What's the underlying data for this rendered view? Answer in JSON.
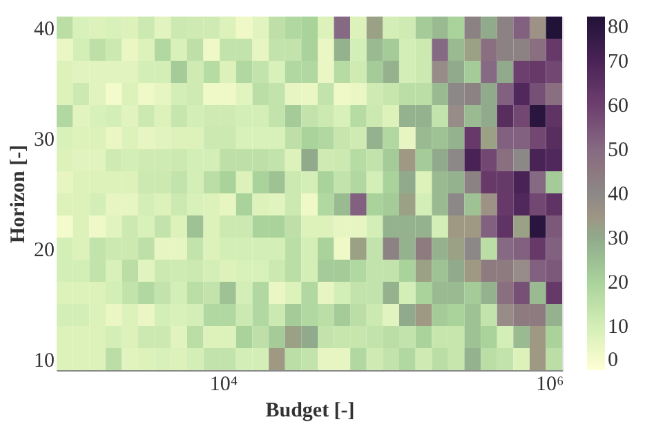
{
  "chart_data": {
    "type": "heatmap",
    "xlabel": "Budget [-]",
    "ylabel": "Horizon [-]",
    "log": "x",
    "xlim": [
      955,
      1200000
    ],
    "xticks": [
      {
        "value": 10000,
        "label": "10⁴"
      },
      {
        "value": 1000000,
        "label": "10⁶"
      }
    ],
    "ylim": [
      9,
      41
    ],
    "yticks": [
      10,
      20,
      30,
      40
    ],
    "clim": [
      0,
      80
    ],
    "cticks": [
      0,
      10,
      20,
      30,
      40,
      50,
      60,
      70,
      80
    ],
    "x": [
      1070,
      1350,
      1700,
      2140,
      2690,
      3390,
      4270,
      5370,
      6760,
      8510,
      10700,
      13500,
      17000,
      21400,
      26900,
      33900,
      42700,
      53700,
      67600,
      85100,
      107000,
      135000,
      170000,
      214000,
      269000,
      339000,
      427000,
      537000,
      676000,
      851000,
      1070000
    ],
    "y": [
      40,
      38,
      36,
      34,
      32,
      30,
      28,
      26,
      24,
      22,
      20,
      18,
      16,
      14,
      12,
      10
    ],
    "cells": [
      [
        16,
        9,
        8,
        9,
        8,
        12,
        7,
        12,
        11,
        11,
        8,
        4,
        7,
        15,
        18,
        20,
        8,
        50,
        8,
        32,
        10,
        11,
        22,
        26,
        20,
        42,
        30,
        42,
        52,
        36,
        80
      ],
      [
        5,
        10,
        15,
        12,
        5,
        8,
        18,
        9,
        15,
        4,
        14,
        14,
        6,
        14,
        14,
        20,
        5,
        28,
        10,
        26,
        22,
        10,
        12,
        50,
        26,
        32,
        48,
        42,
        42,
        48,
        62
      ],
      [
        8,
        7,
        7,
        7,
        7,
        10,
        10,
        22,
        11,
        17,
        8,
        18,
        14,
        9,
        18,
        18,
        5,
        17,
        11,
        22,
        28,
        10,
        12,
        38,
        30,
        22,
        50,
        30,
        60,
        62,
        58
      ],
      [
        8,
        12,
        7,
        3,
        8,
        4,
        6,
        10,
        11,
        4,
        4,
        7,
        16,
        14,
        6,
        5,
        14,
        4,
        5,
        11,
        13,
        16,
        16,
        26,
        40,
        42,
        30,
        52,
        68,
        56,
        48
      ],
      [
        18,
        7,
        9,
        10,
        7,
        12,
        8,
        13,
        10,
        11,
        11,
        10,
        10,
        14,
        22,
        14,
        12,
        9,
        17,
        12,
        8,
        28,
        28,
        14,
        38,
        26,
        30,
        66,
        58,
        78,
        64
      ],
      [
        9,
        8,
        8,
        5,
        8,
        6,
        7,
        8,
        8,
        12,
        12,
        9,
        9,
        9,
        15,
        20,
        18,
        13,
        11,
        28,
        18,
        6,
        26,
        24,
        28,
        62,
        32,
        52,
        52,
        58,
        66
      ],
      [
        8,
        7,
        7,
        11,
        10,
        11,
        11,
        12,
        10,
        10,
        15,
        15,
        15,
        14,
        8,
        30,
        11,
        12,
        17,
        14,
        22,
        34,
        22,
        30,
        40,
        70,
        58,
        48,
        40,
        70,
        68
      ],
      [
        6,
        8,
        8,
        8,
        8,
        12,
        12,
        14,
        10,
        16,
        20,
        8,
        20,
        24,
        12,
        10,
        20,
        14,
        18,
        10,
        20,
        30,
        8,
        26,
        28,
        42,
        62,
        62,
        70,
        50,
        22
      ],
      [
        8,
        8,
        10,
        6,
        6,
        10,
        8,
        12,
        9,
        8,
        6,
        20,
        8,
        7,
        12,
        4,
        18,
        26,
        52,
        20,
        22,
        32,
        10,
        26,
        40,
        24,
        36,
        62,
        68,
        58,
        64
      ],
      [
        3,
        8,
        4,
        7,
        12,
        9,
        14,
        8,
        24,
        8,
        12,
        12,
        20,
        20,
        15,
        8,
        8,
        6,
        6,
        10,
        28,
        28,
        28,
        10,
        34,
        34,
        52,
        64,
        32,
        78,
        54
      ],
      [
        10,
        8,
        14,
        12,
        12,
        15,
        6,
        6,
        14,
        8,
        10,
        10,
        10,
        10,
        16,
        10,
        20,
        4,
        32,
        14,
        42,
        28,
        44,
        28,
        32,
        40,
        16,
        50,
        52,
        62,
        52
      ],
      [
        10,
        10,
        14,
        9,
        16,
        7,
        12,
        11,
        12,
        10,
        8,
        9,
        9,
        12,
        16,
        10,
        22,
        22,
        18,
        14,
        14,
        20,
        32,
        24,
        30,
        34,
        44,
        44,
        38,
        52,
        54
      ],
      [
        8,
        8,
        8,
        10,
        14,
        18,
        14,
        10,
        16,
        14,
        24,
        10,
        18,
        5,
        8,
        18,
        6,
        10,
        14,
        14,
        28,
        10,
        20,
        26,
        26,
        22,
        28,
        48,
        56,
        26,
        62
      ],
      [
        10,
        10,
        8,
        5,
        8,
        5,
        10,
        9,
        10,
        18,
        18,
        12,
        18,
        12,
        22,
        18,
        16,
        22,
        16,
        12,
        7,
        30,
        34,
        22,
        20,
        24,
        14,
        38,
        44,
        44,
        28
      ],
      [
        8,
        8,
        8,
        10,
        8,
        12,
        12,
        7,
        16,
        8,
        8,
        20,
        15,
        22,
        32,
        30,
        14,
        13,
        13,
        14,
        16,
        14,
        20,
        13,
        13,
        24,
        20,
        10,
        26,
        34,
        20
      ],
      [
        8,
        8,
        8,
        16,
        7,
        8,
        9,
        8,
        10,
        14,
        14,
        10,
        10,
        34,
        16,
        14,
        6,
        6,
        18,
        11,
        14,
        18,
        11,
        16,
        13,
        28,
        16,
        14,
        8,
        34,
        16
      ]
    ]
  }
}
